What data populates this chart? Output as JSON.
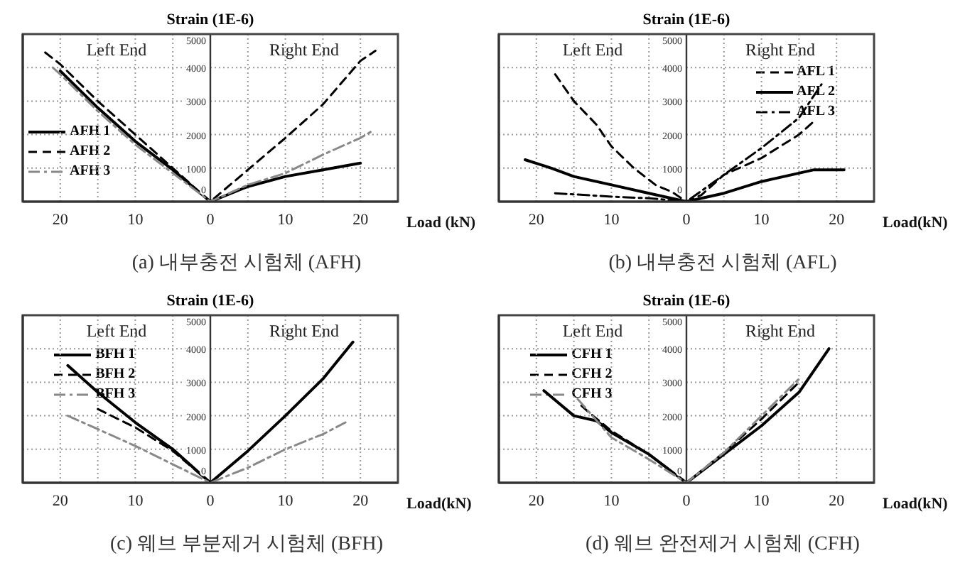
{
  "chart_data": [
    {
      "type": "line",
      "title": "(a) 내부충전 시험체 (AFH)",
      "ylabel": "Strain (1E-6)",
      "xlabel": "Load (kN)",
      "annotations": [
        "Left End",
        "Right End"
      ],
      "grid": true,
      "legend": "left",
      "marker": "none",
      "xlim": [
        -25,
        25
      ],
      "ylim": [
        0,
        5000
      ],
      "xticks": [
        {
          "value": -20,
          "label": "20"
        },
        {
          "value": -15,
          "label": null
        },
        {
          "value": -10,
          "label": "10"
        },
        {
          "value": -5,
          "label": null
        },
        0,
        {
          "value": 5,
          "label": null
        },
        10,
        {
          "value": 15,
          "label": null
        },
        20
      ],
      "yticks": [
        0,
        1000,
        2000,
        3000,
        4000,
        5000
      ],
      "series": [
        {
          "name": "AFH 1",
          "color": "#000000",
          "line_style": "solid",
          "x": [
            -20,
            -15,
            -10,
            -5,
            0,
            5,
            10,
            15,
            20
          ],
          "values": [
            3900,
            2800,
            1800,
            950,
            0,
            450,
            750,
            950,
            1150
          ]
        },
        {
          "name": "AFH 2",
          "color": "#000000",
          "line_style": "dashed",
          "x": [
            -22,
            -20,
            -15,
            -10,
            -5,
            0,
            5,
            10,
            15,
            20,
            22
          ],
          "values": [
            4450,
            4100,
            3000,
            2000,
            1000,
            0,
            950,
            1900,
            2900,
            4200,
            4500
          ]
        },
        {
          "name": "AFH 3",
          "color": "#888888",
          "line_style": "dashdot",
          "x": [
            -21,
            -20,
            -15,
            -10,
            -5,
            0,
            5,
            10,
            15,
            20,
            21.5
          ],
          "values": [
            4000,
            3800,
            2700,
            1700,
            850,
            0,
            500,
            850,
            1400,
            1900,
            2100
          ]
        }
      ]
    },
    {
      "type": "line",
      "title": "(b) 내부충전 시험체 (AFL)",
      "ylabel": "Strain (1E-6)",
      "xlabel": "Load(kN)",
      "annotations": [
        "Left End",
        "Right End"
      ],
      "grid": true,
      "legend": "top right",
      "marker": "none",
      "xlim": [
        -25,
        25
      ],
      "ylim": [
        0,
        5000
      ],
      "xticks": [
        {
          "value": -20,
          "label": "20"
        },
        {
          "value": -15,
          "label": null
        },
        {
          "value": -10,
          "label": "10"
        },
        {
          "value": -5,
          "label": null
        },
        0,
        {
          "value": 5,
          "label": null
        },
        10,
        {
          "value": 15,
          "label": null
        },
        20
      ],
      "yticks": [
        0,
        1000,
        2000,
        3000,
        4000,
        5000
      ],
      "series": [
        {
          "name": "AFL 1",
          "color": "#000000",
          "line_style": "dashed",
          "x": [
            -17.5,
            -15,
            -12,
            -10,
            -7,
            -4,
            -2,
            0,
            2,
            5,
            10,
            15,
            17
          ],
          "values": [
            3800,
            3000,
            2300,
            1650,
            1000,
            480,
            300,
            0,
            200,
            800,
            1300,
            2000,
            2400
          ]
        },
        {
          "name": "AFL 2",
          "color": "#000000",
          "line_style": "solid",
          "x": [
            -21.5,
            -18,
            -15,
            -10,
            -5,
            0,
            5,
            10,
            15,
            17,
            21
          ],
          "values": [
            1250,
            1000,
            750,
            500,
            250,
            0,
            250,
            600,
            850,
            950,
            950
          ]
        },
        {
          "name": "AFL 3",
          "color": "#000000",
          "line_style": "dashdot",
          "x": [
            -17.5,
            -10,
            -5,
            0,
            5,
            10,
            15,
            18
          ],
          "values": [
            250,
            150,
            100,
            0,
            800,
            1600,
            2500,
            3500
          ]
        }
      ]
    },
    {
      "type": "line",
      "title": "(c) 웨브 부분제거 시험체 (BFH)",
      "ylabel": "Strain (1E-6)",
      "xlabel": "Load(kN)",
      "annotations": [
        "Left End",
        "Right End"
      ],
      "grid": true,
      "legend": "top left",
      "marker": "none",
      "xlim": [
        -25,
        25
      ],
      "ylim": [
        0,
        5000
      ],
      "xticks": [
        {
          "value": -20,
          "label": "20"
        },
        {
          "value": -15,
          "label": null
        },
        {
          "value": -10,
          "label": "10"
        },
        {
          "value": -5,
          "label": null
        },
        0,
        {
          "value": 5,
          "label": null
        },
        10,
        {
          "value": 15,
          "label": null
        },
        20
      ],
      "yticks": [
        0,
        1000,
        2000,
        3000,
        4000,
        5000
      ],
      "series": [
        {
          "name": "BFH 1",
          "color": "#000000",
          "line_style": "solid",
          "x": [
            -19,
            -15,
            -10,
            -5,
            0,
            5,
            10,
            15,
            19
          ],
          "values": [
            3500,
            2700,
            1800,
            1000,
            0,
            950,
            2000,
            3100,
            4200
          ]
        },
        {
          "name": "BFH 2",
          "color": "#000000",
          "line_style": "dashed",
          "x": [
            -15,
            -10,
            -5,
            0
          ],
          "values": [
            2200,
            1650,
            950,
            0
          ]
        },
        {
          "name": "BFH 3",
          "color": "#888888",
          "line_style": "dashdot",
          "x": [
            -19,
            -15,
            -10,
            -5,
            0,
            5,
            10,
            15,
            18
          ],
          "values": [
            2000,
            1600,
            1100,
            550,
            0,
            450,
            1000,
            1450,
            1800
          ]
        }
      ]
    },
    {
      "type": "line",
      "title": "(d) 웨브 완전제거 시험체 (CFH)",
      "ylabel": "Strain (1E-6)",
      "xlabel": "Load(kN)",
      "annotations": [
        "Left End",
        "Right End"
      ],
      "grid": true,
      "legend": "top left",
      "marker": "none",
      "xlim": [
        -25,
        25
      ],
      "ylim": [
        0,
        5000
      ],
      "xticks": [
        {
          "value": -20,
          "label": "20"
        },
        {
          "value": -15,
          "label": null
        },
        {
          "value": -10,
          "label": "10"
        },
        {
          "value": -5,
          "label": null
        },
        0,
        {
          "value": 5,
          "label": null
        },
        10,
        {
          "value": 15,
          "label": null
        },
        20
      ],
      "yticks": [
        0,
        1000,
        2000,
        3000,
        4000,
        5000
      ],
      "series": [
        {
          "name": "CFH 1",
          "color": "#000000",
          "line_style": "solid",
          "x": [
            -19,
            -15,
            -12,
            -10,
            -5,
            0,
            5,
            10,
            15,
            19
          ],
          "values": [
            2750,
            2000,
            1850,
            1500,
            850,
            0,
            850,
            1700,
            2700,
            4000
          ]
        },
        {
          "name": "CFH 2",
          "color": "#000000",
          "line_style": "dashed",
          "x": [
            -14,
            -13,
            -10,
            -5,
            0,
            5,
            10,
            15
          ],
          "values": [
            2300,
            2100,
            1550,
            850,
            0,
            900,
            1900,
            3000
          ]
        },
        {
          "name": "CFH 3",
          "color": "#888888",
          "line_style": "dashdot",
          "x": [
            -14.5,
            -10,
            -5,
            0,
            5,
            10,
            15
          ],
          "values": [
            2500,
            1350,
            700,
            0,
            900,
            2000,
            3100
          ]
        }
      ]
    }
  ]
}
